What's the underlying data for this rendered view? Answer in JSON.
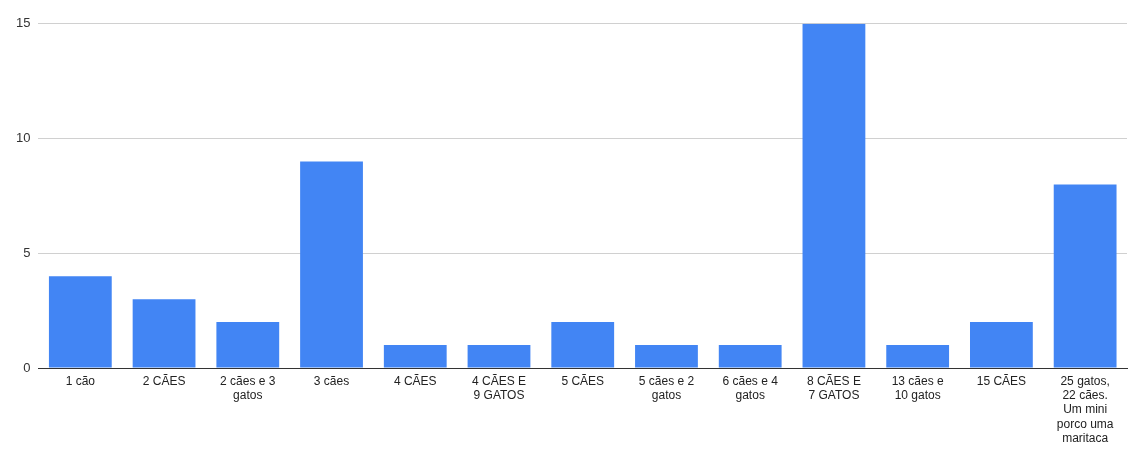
{
  "chart_data": {
    "type": "bar",
    "categories": [
      "1 cão",
      "2 CÃES",
      "2 cães e 3 gatos",
      "3 cães",
      "4 CÃES",
      "4 CÃES E 9 GATOS",
      "5 CÃES",
      "5 cães e 2 gatos",
      "6 cães e 4 gatos",
      "8 CÃES E 7 GATOS",
      "13 cães e 10 gatos",
      "15 CÃES",
      "25 gatos, 22 cães. Um mini porco uma maritaca"
    ],
    "values": [
      4,
      3,
      2,
      9,
      1,
      1,
      2,
      1,
      1,
      15,
      1,
      2,
      8
    ],
    "color": "#4285f4",
    "ylim": [
      0,
      15
    ],
    "yticks": [
      0,
      5,
      10,
      15
    ],
    "grid": "y",
    "legend": false
  }
}
